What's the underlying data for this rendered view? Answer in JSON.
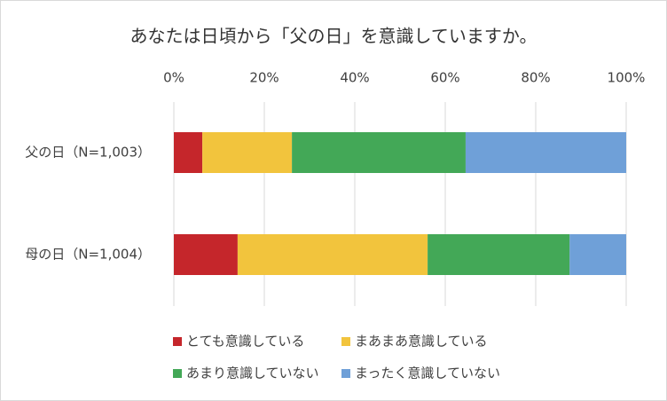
{
  "chart_data": {
    "type": "bar",
    "orientation": "horizontal",
    "stacked": true,
    "title": "あなたは日頃から「父の日」を意識していますか。",
    "categories": [
      "父の日（N=1,003）",
      "母の日（N=1,004）"
    ],
    "series": [
      {
        "name": "とても意識している",
        "color": "#c5262b",
        "values": [
          6.3,
          14.1
        ]
      },
      {
        "name": "まあまあ意識している",
        "color": "#f2c43d",
        "values": [
          19.8,
          42.0
        ]
      },
      {
        "name": "あまり意識していない",
        "color": "#43a857",
        "values": [
          38.4,
          31.4
        ]
      },
      {
        "name": "まったく意識していない",
        "color": "#6fa0d8",
        "values": [
          35.5,
          12.5
        ]
      }
    ],
    "xlim": [
      0,
      100
    ],
    "xticks": [
      {
        "value": 0,
        "label": "0%"
      },
      {
        "value": 20,
        "label": "20%"
      },
      {
        "value": 40,
        "label": "40%"
      },
      {
        "value": 60,
        "label": "60%"
      },
      {
        "value": 80,
        "label": "80%"
      },
      {
        "value": 100,
        "label": "100%"
      }
    ],
    "grid": true,
    "legend": "bottom"
  }
}
